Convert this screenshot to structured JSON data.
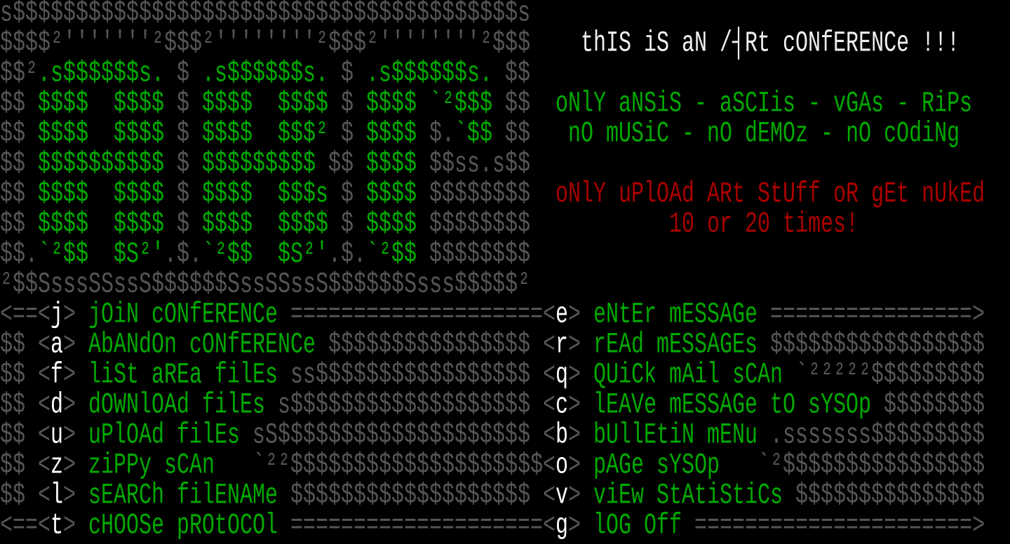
{
  "colors": {
    "dark_gray": "#555555",
    "green": "#00aa00",
    "white": "#ffffff",
    "red": "#aa0000",
    "background": "#000000"
  },
  "logo_art": [
    [
      [
        "s$$$$$$$$$$$$$$$$$$$$$$$$$$$$$$$$$$$$$$$$s",
        "d"
      ]
    ],
    [
      [
        "$$$$²'''''''²$$$²''''''''²$$$²''''''''²$$$",
        "d"
      ]
    ],
    [
      [
        "$$²",
        "d"
      ],
      [
        ".s$$$$$$s.",
        "g"
      ],
      [
        " $ ",
        "d"
      ],
      [
        ".s$$$$$$s.",
        "g"
      ],
      [
        " $ ",
        "d"
      ],
      [
        ".s$$$$$$s.",
        "g"
      ],
      [
        " $$",
        "d"
      ]
    ],
    [
      [
        "$$ ",
        "d"
      ],
      [
        "$$$$  $$$$",
        "g"
      ],
      [
        " $ ",
        "d"
      ],
      [
        "$$$$  $$$$",
        "g"
      ],
      [
        " $ ",
        "d"
      ],
      [
        "$$$$ `²$$$",
        "g"
      ],
      [
        " $$",
        "d"
      ]
    ],
    [
      [
        "$$ ",
        "d"
      ],
      [
        "$$$$  $$$$",
        "g"
      ],
      [
        " $ ",
        "d"
      ],
      [
        "$$$$  $$$²",
        "g"
      ],
      [
        " $ ",
        "d"
      ],
      [
        "$$$$ ",
        "g"
      ],
      [
        "$.",
        "d"
      ],
      [
        "`$$",
        "g"
      ],
      [
        " $$",
        "d"
      ]
    ],
    [
      [
        "$$ ",
        "d"
      ],
      [
        "$$$$$$$$$$",
        "g"
      ],
      [
        " $ ",
        "d"
      ],
      [
        "$$$$$$$$$",
        "g"
      ],
      [
        " $$ ",
        "d"
      ],
      [
        "$$$$",
        "g"
      ],
      [
        " $$ss.s$$",
        "d"
      ]
    ],
    [
      [
        "$$ ",
        "d"
      ],
      [
        "$$$$  $$$$",
        "g"
      ],
      [
        " $ ",
        "d"
      ],
      [
        "$$$$  $$$s",
        "g"
      ],
      [
        " $ ",
        "d"
      ],
      [
        "$$$$",
        "g"
      ],
      [
        " $$$$$$$$",
        "d"
      ]
    ],
    [
      [
        "$$ ",
        "d"
      ],
      [
        "$$$$  $$$$",
        "g"
      ],
      [
        " $ ",
        "d"
      ],
      [
        "$$$$  $$$$",
        "g"
      ],
      [
        " $ ",
        "d"
      ],
      [
        "$$$$",
        "g"
      ],
      [
        " $$$$$$$$",
        "d"
      ]
    ],
    [
      [
        "$$.",
        "d"
      ],
      [
        "`²$$  $S²'",
        "g"
      ],
      [
        ".$.",
        "d"
      ],
      [
        "`²$$  $S²'",
        "g"
      ],
      [
        ".$.",
        "d"
      ],
      [
        "`²$$",
        "g"
      ],
      [
        " $$$$$$$$",
        "d"
      ]
    ],
    [
      [
        "²$$SsssSSssS$$$$$$SssSSssS$$$$$$Ssss$$$$$²",
        "d"
      ]
    ]
  ],
  "info": {
    "title": "thIS iS aN /┤Rt cONfERENCe !!!",
    "allowed": "oNlY aNSiS - aSCIis - vGAs - RiPs",
    "forbidden": "nO mUSiC - nO dEMOz - nO cOdiNg",
    "warning_1": "oNlY uPlOAd ARt StUff oR gEt nUkEd",
    "warning_2": "10 or 20 times!"
  },
  "menu_left": [
    {
      "prefix": "<==",
      "key": "j",
      "label": "jOiN cONfERENCe",
      "filler": "===================="
    },
    {
      "prefix": "$$ ",
      "key": "a",
      "label": "AbANdOn cONfERENCe",
      "filler": "$$$$$$$$$$$$$$$$"
    },
    {
      "prefix": "$$ ",
      "key": "f",
      "label": "liSt aREa filEs",
      "filler": "ss$$$$$$$$$$$$$$$$$"
    },
    {
      "prefix": "$$ ",
      "key": "d",
      "label": "dOWNlOAd filEs",
      "filler": "s$$$$$$$$$$$$$$$$$$$"
    },
    {
      "prefix": "$$ ",
      "key": "u",
      "label": "uPlOAd filEs",
      "filler": "sS$$$$$$$$$$$$$$$$$$$$"
    },
    {
      "prefix": "$$ ",
      "key": "z",
      "label": "ziPPy sCAn",
      "filler": "  `²²$$$$$$$$$$$$$$$$$$$$"
    },
    {
      "prefix": "$$ ",
      "key": "l",
      "label": "sEARCh filENAMe",
      "filler": "$$$$$$$$$$$$$$$$$$$"
    },
    {
      "prefix": "<==",
      "key": "t",
      "label": "cHOOSe pROtOCOl",
      "filler": "===================="
    }
  ],
  "menu_right": [
    {
      "key": "e",
      "label": "eNtEr mESSAGe",
      "filler": "================>"
    },
    {
      "key": "r",
      "label": "rEAd mESSAGEs",
      "filler": "$$$$$$$$$$$$$$$$$"
    },
    {
      "key": "q",
      "label": "QUiCk mAil sCAn",
      "filler": "`²²²²²$$$$$$$$$"
    },
    {
      "key": "c",
      "label": "lEAVe mESSAGe tO sYSOp",
      "filler": "$$$$$$$$"
    },
    {
      "key": "b",
      "label": "bUllEtiN mENu",
      "filler": ".sssssss$$$$$$$$$"
    },
    {
      "key": "o",
      "label": "pAGe sYSOp",
      "filler": "  `²$$$$$$$$$$$$$$$$"
    },
    {
      "key": "v",
      "label": "viEw StAtiStiCs",
      "filler": "$$$$$$$$$$$$$$$"
    },
    {
      "key": "g",
      "label": "lOG Off",
      "filler": "======================>"
    }
  ],
  "brackets": {
    "open": "<",
    "close": ">"
  }
}
